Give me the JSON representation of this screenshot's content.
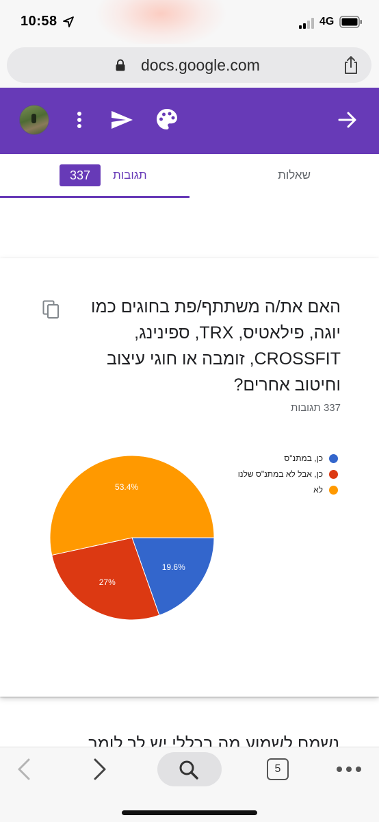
{
  "status_bar": {
    "time": "10:58",
    "network": "4G",
    "icons": [
      "location-arrow-icon",
      "signal-icon",
      "battery-icon"
    ]
  },
  "browser": {
    "url": "docs.google.com",
    "icons": [
      "lock-icon",
      "share-icon"
    ]
  },
  "header": {
    "accent_color": "#673ab7",
    "icons": [
      "avatar",
      "more-vert-icon",
      "send-icon",
      "palette-icon",
      "arrow-back-icon"
    ]
  },
  "tabs": {
    "questions_label": "שאלות",
    "responses_label": "תגובות",
    "responses_count": "337",
    "active": "responses"
  },
  "question_card": {
    "title": "האם את/ה משתתף/פת בחוגים כמו יוגה, פילאטיס, TRX, ספינינג, CROSSFIT, זומבה או חוגי עיצוב וחיטוב אחרים?",
    "response_count_label": "337 תגובות"
  },
  "chart_data": {
    "type": "pie",
    "slices": [
      {
        "label": "כן, במתנ\"ס",
        "value": 19.6,
        "value_label": "19.6%",
        "color": "#3366cc"
      },
      {
        "label": "כן, אבל לא במתנ\"ס שלנו",
        "value": 27.0,
        "value_label": "27%",
        "color": "#dc3912"
      },
      {
        "label": "לא",
        "value": 53.4,
        "value_label": "53.4%",
        "color": "#ff9900"
      }
    ],
    "legend_position": "right"
  },
  "next_question": {
    "partial_text": "נשמח לשמוע מה בכללי יש לך לומר"
  },
  "bottom_toolbar": {
    "tab_count": "5",
    "icons": [
      "chevron-left-icon",
      "chevron-right-icon",
      "search-icon",
      "tabs-icon",
      "more-horiz-icon"
    ]
  }
}
